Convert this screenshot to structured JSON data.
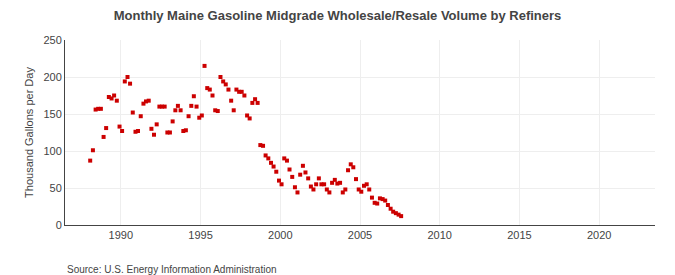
{
  "chart_data": {
    "type": "scatter",
    "title": "Monthly Maine Gasoline Midgrade Wholesale/Resale Volume by Refiners",
    "ylabel": "Thousand Gallons per Day",
    "annotations": [
      "Source: U.S. Energy Information Administration"
    ],
    "color": "#cc0000",
    "marker": "square",
    "grid": true,
    "xlim": [
      1986.5,
      2023.5
    ],
    "ylim": [
      0,
      250
    ],
    "xticks": [
      1990,
      1995,
      2000,
      2005,
      2010,
      2015,
      2020
    ],
    "yticks": [
      0,
      50,
      100,
      150,
      200,
      250
    ],
    "x": [
      1988.08,
      1988.25,
      1988.42,
      1988.58,
      1988.75,
      1988.92,
      1989.08,
      1989.25,
      1989.42,
      1989.58,
      1989.75,
      1989.92,
      1990.08,
      1990.25,
      1990.42,
      1990.58,
      1990.75,
      1990.92,
      1991.08,
      1991.25,
      1991.42,
      1991.58,
      1991.75,
      1991.92,
      1992.08,
      1992.25,
      1992.42,
      1992.58,
      1992.75,
      1992.92,
      1993.08,
      1993.25,
      1993.42,
      1993.58,
      1993.75,
      1993.92,
      1994.08,
      1994.25,
      1994.42,
      1994.58,
      1994.75,
      1994.92,
      1995.08,
      1995.25,
      1995.42,
      1995.58,
      1995.75,
      1995.92,
      1996.08,
      1996.25,
      1996.42,
      1996.58,
      1996.75,
      1996.92,
      1997.08,
      1997.25,
      1997.42,
      1997.58,
      1997.75,
      1997.92,
      1998.08,
      1998.25,
      1998.42,
      1998.58,
      1998.75,
      1998.92,
      1999.08,
      1999.25,
      1999.42,
      1999.58,
      1999.75,
      1999.92,
      2000.08,
      2000.25,
      2000.42,
      2000.58,
      2000.75,
      2000.92,
      2001.08,
      2001.25,
      2001.42,
      2001.58,
      2001.75,
      2001.92,
      2002.08,
      2002.25,
      2002.42,
      2002.58,
      2002.75,
      2002.92,
      2003.08,
      2003.25,
      2003.42,
      2003.58,
      2003.75,
      2003.92,
      2004.08,
      2004.25,
      2004.42,
      2004.58,
      2004.75,
      2004.92,
      2005.08,
      2005.25,
      2005.42,
      2005.58,
      2005.75,
      2005.92,
      2006.08,
      2006.25,
      2006.42,
      2006.58,
      2006.75,
      2006.92,
      2007.08,
      2007.25,
      2007.42,
      2007.58
    ],
    "values": [
      87,
      101,
      156,
      157,
      157,
      119,
      131,
      173,
      171,
      175,
      168,
      133,
      127,
      194,
      200,
      191,
      152,
      126,
      127,
      147,
      164,
      167,
      168,
      130,
      122,
      136,
      160,
      160,
      160,
      125,
      125,
      140,
      155,
      161,
      155,
      127,
      128,
      147,
      161,
      174,
      160,
      145,
      148,
      215,
      185,
      183,
      175,
      155,
      154,
      200,
      194,
      190,
      183,
      168,
      155,
      183,
      180,
      180,
      175,
      148,
      144,
      165,
      170,
      165,
      108,
      107,
      94,
      90,
      84,
      79,
      72,
      60,
      55,
      90,
      87,
      75,
      65,
      51,
      44,
      68,
      80,
      71,
      63,
      52,
      48,
      55,
      63,
      55,
      55,
      48,
      44,
      57,
      61,
      56,
      57,
      44,
      48,
      74,
      82,
      78,
      62,
      48,
      45,
      53,
      55,
      48,
      37,
      30,
      29,
      36,
      35,
      33,
      27,
      22,
      18,
      16,
      14,
      12
    ]
  }
}
